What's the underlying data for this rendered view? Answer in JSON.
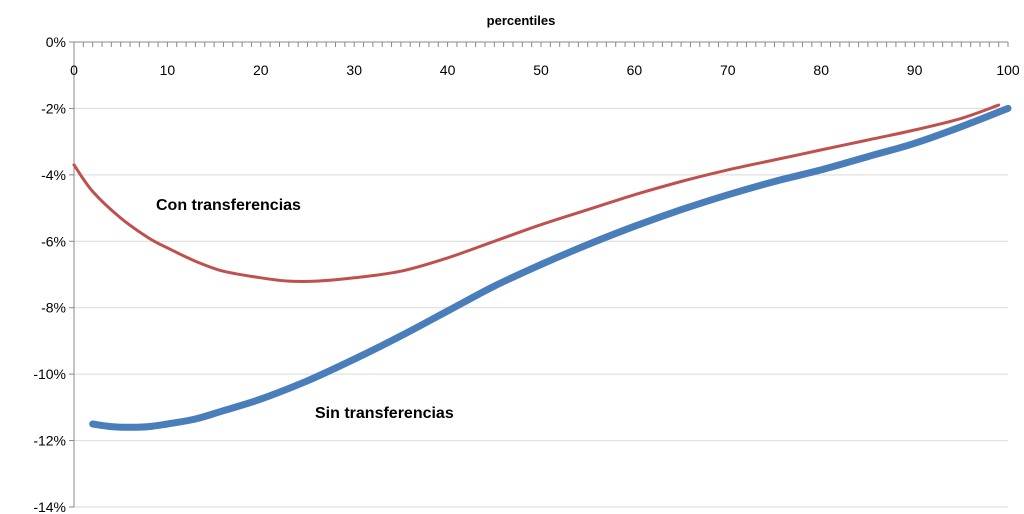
{
  "chart_data": {
    "type": "line",
    "xlabel": "percentiles",
    "xlim": [
      0,
      100
    ],
    "ylim": [
      -14,
      0
    ],
    "x_ticks": [
      "0",
      "10",
      "20",
      "30",
      "40",
      "50",
      "60",
      "70",
      "80",
      "90",
      "100"
    ],
    "y_ticks": [
      "0%",
      "-2%",
      "-4%",
      "-6%",
      "-8%",
      "-10%",
      "-12%",
      "-14%"
    ],
    "grid": true,
    "x_axis_position": "top",
    "series": [
      {
        "name": "Con transferencias",
        "color": "#c0504d",
        "x": [
          0,
          2,
          5,
          8,
          10,
          13,
          16,
          20,
          23,
          26,
          30,
          35,
          40,
          45,
          50,
          55,
          60,
          65,
          70,
          75,
          80,
          85,
          90,
          95,
          99
        ],
        "y": [
          -3.7,
          -4.5,
          -5.3,
          -5.9,
          -6.2,
          -6.6,
          -6.9,
          -7.1,
          -7.2,
          -7.2,
          -7.1,
          -6.9,
          -6.5,
          -6.0,
          -5.5,
          -5.05,
          -4.6,
          -4.2,
          -3.85,
          -3.55,
          -3.25,
          -2.95,
          -2.65,
          -2.3,
          -1.9
        ]
      },
      {
        "name": "Sin transferencias",
        "color": "#4a7ebb",
        "x": [
          2,
          4,
          6,
          8,
          10,
          13,
          16,
          20,
          25,
          30,
          35,
          40,
          45,
          50,
          55,
          60,
          65,
          70,
          75,
          80,
          85,
          90,
          95,
          100
        ],
        "y": [
          -11.5,
          -11.58,
          -11.6,
          -11.58,
          -11.5,
          -11.35,
          -11.1,
          -10.75,
          -10.2,
          -9.55,
          -8.85,
          -8.1,
          -7.35,
          -6.7,
          -6.1,
          -5.55,
          -5.05,
          -4.6,
          -4.2,
          -3.85,
          -3.45,
          -3.05,
          -2.55,
          -2.0
        ]
      }
    ],
    "annotations": [
      "Con transferencias",
      "Sin transferencias"
    ]
  }
}
